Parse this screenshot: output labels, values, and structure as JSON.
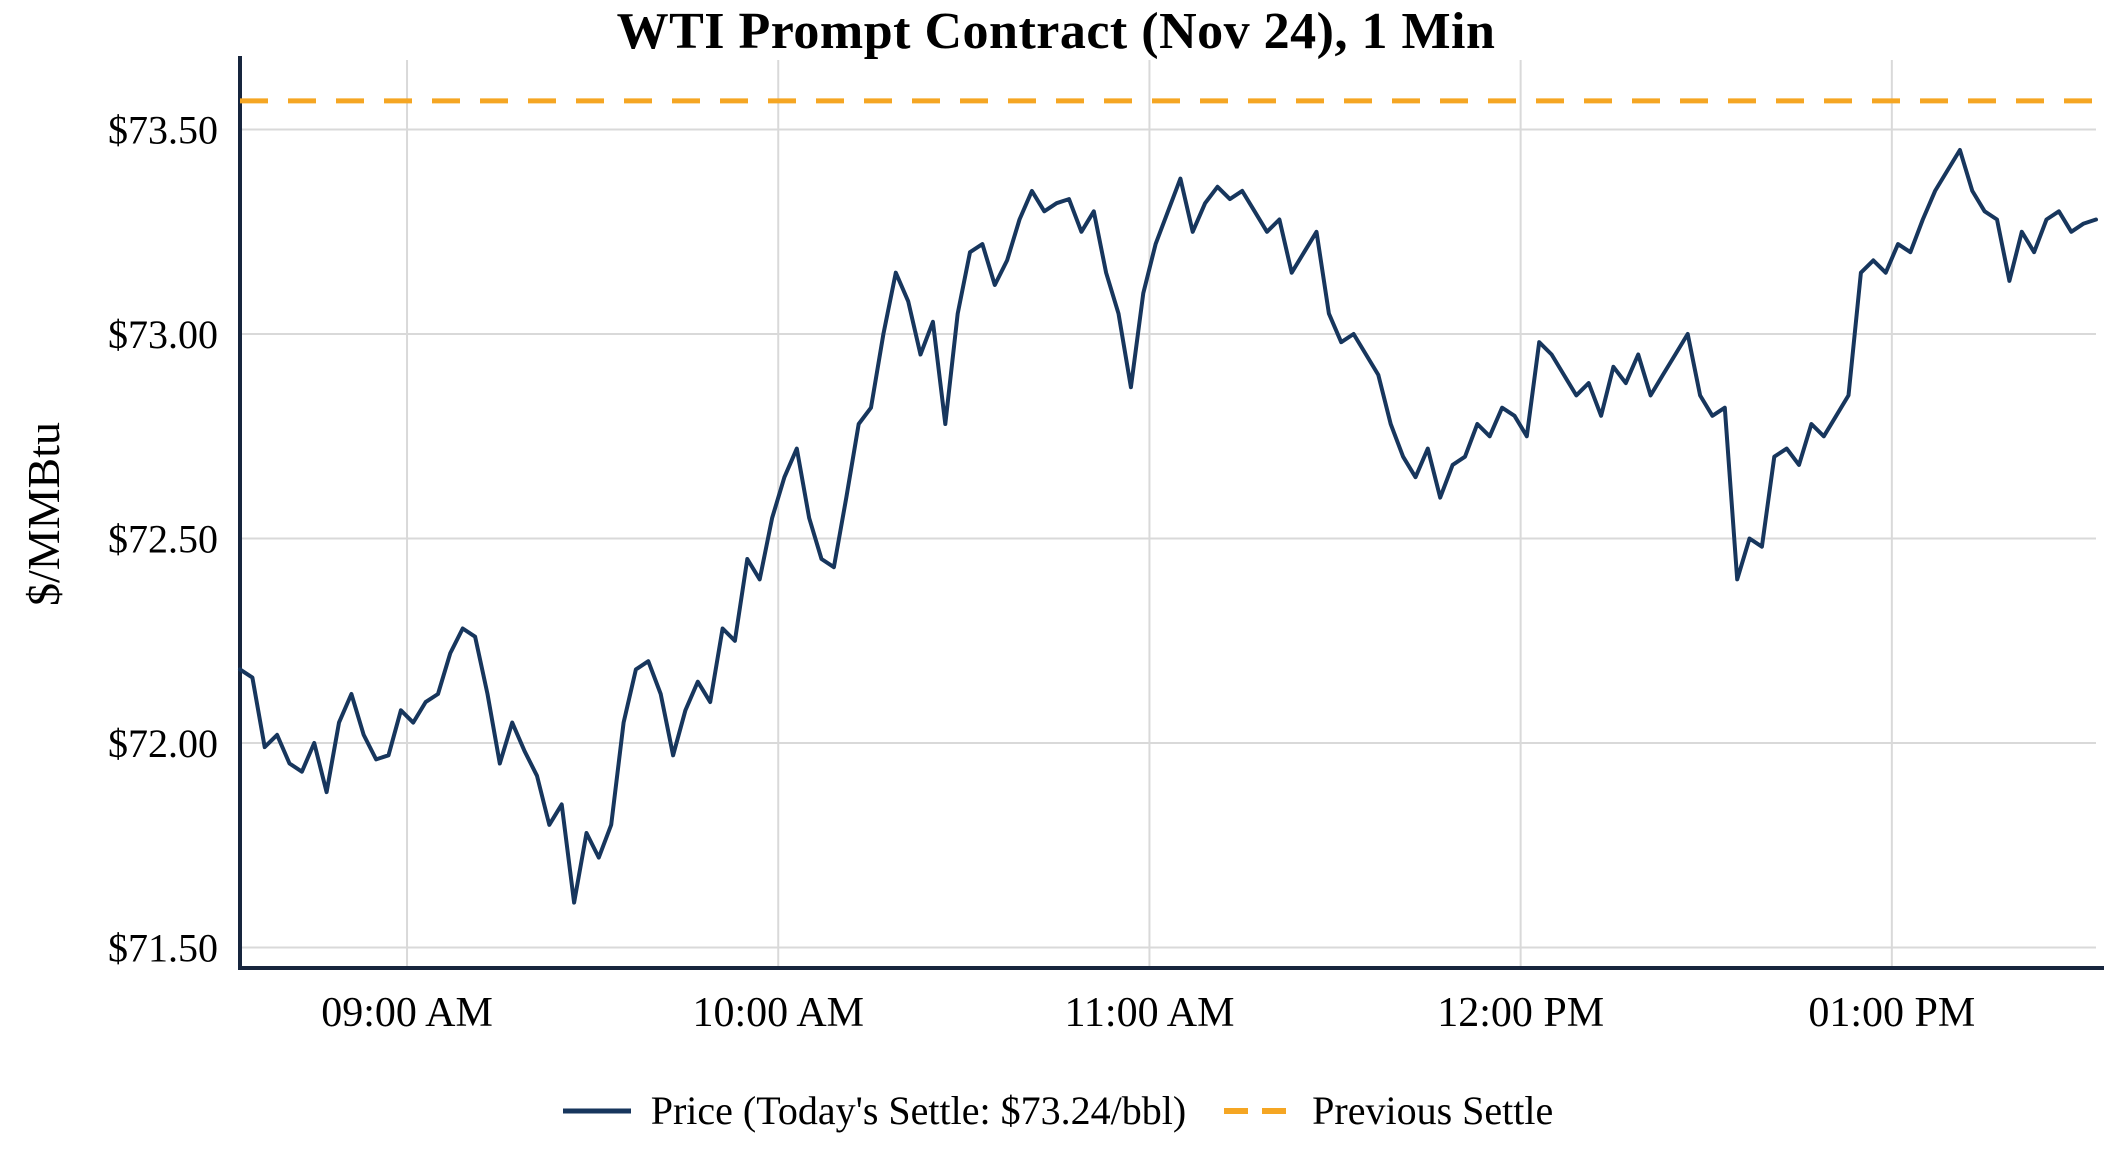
{
  "page": {
    "background": "#ffffff"
  },
  "chart_data": {
    "type": "line",
    "title": "WTI Prompt Contract (Nov 24), 1 Min",
    "xlabel": "",
    "ylabel": "$/MMBtu",
    "ylim": [
      71.45,
      73.67
    ],
    "x_domain_minutes": [
      513,
      813
    ],
    "grid": true,
    "legend_position": "bottom",
    "colors": {
      "grid": "#d9d9d9",
      "axis": "#17253d",
      "text": "#000000",
      "price_line": "#17365D",
      "previous_settle": "#F5A623"
    },
    "y_ticks": [
      {
        "value": 71.5,
        "label": "$71.50"
      },
      {
        "value": 72.0,
        "label": "$72.00"
      },
      {
        "value": 72.5,
        "label": "$72.50"
      },
      {
        "value": 73.0,
        "label": "$73.00"
      },
      {
        "value": 73.5,
        "label": "$73.50"
      }
    ],
    "x_ticks": [
      {
        "minute": 540,
        "label": "09:00 AM"
      },
      {
        "minute": 600,
        "label": "10:00 AM"
      },
      {
        "minute": 660,
        "label": "11:00 AM"
      },
      {
        "minute": 720,
        "label": "12:00 PM"
      },
      {
        "minute": 780,
        "label": "01:00 PM"
      }
    ],
    "series": [
      {
        "name": "Price (Today's Settle: $73.24/bbl)",
        "type": "line",
        "style": "solid",
        "color": "#17365D",
        "today_settle": 73.24,
        "x_start_minute": 513,
        "x_step_minutes": 2,
        "values": [
          72.18,
          72.16,
          71.99,
          72.02,
          71.95,
          71.93,
          72.0,
          71.88,
          72.05,
          72.12,
          72.02,
          71.96,
          71.97,
          72.08,
          72.05,
          72.1,
          72.12,
          72.22,
          72.28,
          72.26,
          72.12,
          71.95,
          72.05,
          71.98,
          71.92,
          71.8,
          71.85,
          71.61,
          71.78,
          71.72,
          71.8,
          72.05,
          72.18,
          72.2,
          72.12,
          71.97,
          72.08,
          72.15,
          72.1,
          72.28,
          72.25,
          72.45,
          72.4,
          72.55,
          72.65,
          72.72,
          72.55,
          72.45,
          72.43,
          72.6,
          72.78,
          72.82,
          73.0,
          73.15,
          73.08,
          72.95,
          73.03,
          72.78,
          73.05,
          73.2,
          73.22,
          73.12,
          73.18,
          73.28,
          73.35,
          73.3,
          73.32,
          73.33,
          73.25,
          73.3,
          73.15,
          73.05,
          72.87,
          73.1,
          73.22,
          73.3,
          73.38,
          73.25,
          73.32,
          73.36,
          73.33,
          73.35,
          73.3,
          73.25,
          73.28,
          73.15,
          73.2,
          73.25,
          73.05,
          72.98,
          73.0,
          72.95,
          72.9,
          72.78,
          72.7,
          72.65,
          72.72,
          72.6,
          72.68,
          72.7,
          72.78,
          72.75,
          72.82,
          72.8,
          72.75,
          72.98,
          72.95,
          72.9,
          72.85,
          72.88,
          72.8,
          72.92,
          72.88,
          72.95,
          72.85,
          72.9,
          72.95,
          73.0,
          72.85,
          72.8,
          72.82,
          72.4,
          72.5,
          72.48,
          72.7,
          72.72,
          72.68,
          72.78,
          72.75,
          72.8,
          72.85,
          73.15,
          73.18,
          73.15,
          73.22,
          73.2,
          73.28,
          73.35,
          73.4,
          73.45,
          73.35,
          73.3,
          73.28,
          73.13,
          73.25,
          73.2,
          73.28,
          73.3,
          73.25,
          73.27,
          73.28
        ]
      },
      {
        "name": "Previous Settle",
        "type": "hline",
        "style": "dashed",
        "color": "#F5A623",
        "value": 73.57
      }
    ]
  }
}
